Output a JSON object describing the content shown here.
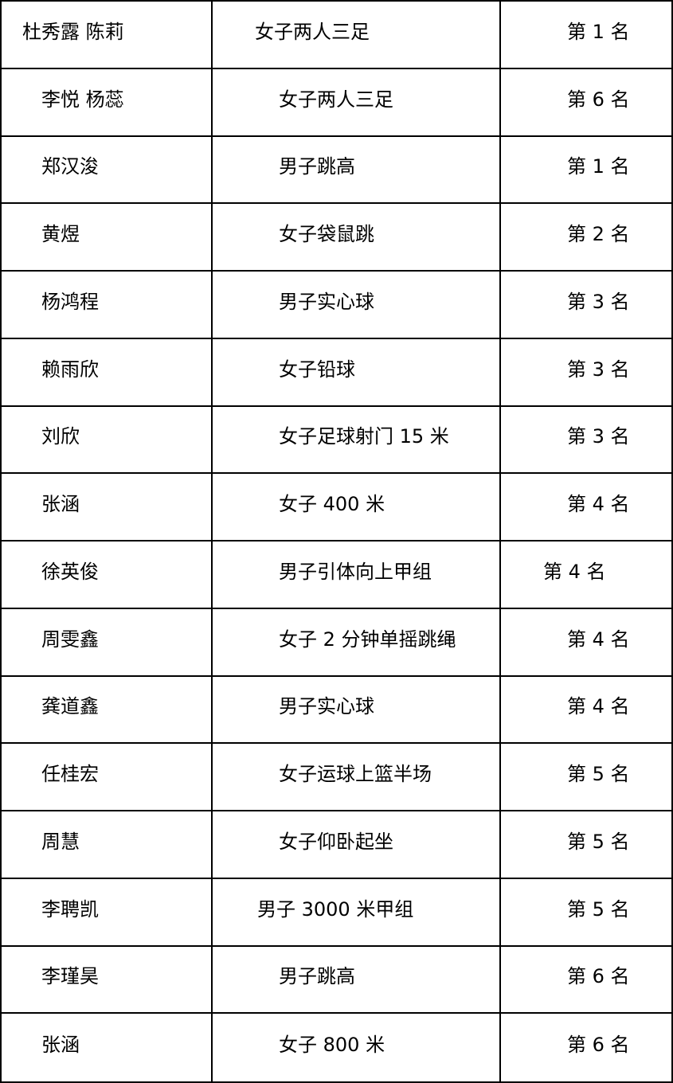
{
  "table": {
    "column_semantics": [
      "athlete-name",
      "event-name",
      "rank"
    ],
    "indent_defaults": {
      "name": 50,
      "event": 83,
      "rank": 83
    },
    "rows": [
      {
        "name": "杜秀露 陈莉",
        "event": "女子两人三足",
        "rank": "第 1 名",
        "name_indent": 26,
        "event_indent": 53
      },
      {
        "name": "李悦 杨蕊",
        "event": "女子两人三足",
        "rank": "第 6 名"
      },
      {
        "name": "郑汉浚",
        "event": "男子跳高",
        "rank": "第 1 名"
      },
      {
        "name": "黄煜",
        "event": "女子袋鼠跳",
        "rank": "第 2 名"
      },
      {
        "name": "杨鸿程",
        "event": "男子实心球",
        "rank": "第 3 名"
      },
      {
        "name": "赖雨欣",
        "event": "女子铅球",
        "rank": "第 3 名"
      },
      {
        "name": "刘欣",
        "event": "女子足球射门 15 米",
        "rank": "第 3 名"
      },
      {
        "name": "张涵",
        "event": "女子 400 米",
        "rank": "第 4 名"
      },
      {
        "name": "徐英俊",
        "event": "男子引体向上甲组",
        "rank": "第 4 名",
        "rank_indent": 53
      },
      {
        "name": "周雯鑫",
        "event": "女子 2 分钟单摇跳绳",
        "rank": "第 4 名"
      },
      {
        "name": "龚道鑫",
        "event": "男子实心球",
        "rank": "第 4 名"
      },
      {
        "name": "任桂宏",
        "event": "女子运球上篮半场",
        "rank": "第 5 名"
      },
      {
        "name": "周慧",
        "event": "女子仰卧起坐",
        "rank": "第 5 名"
      },
      {
        "name": "李聘凯",
        "event": "男子 3000 米甲组",
        "rank": "第 5 名",
        "event_indent": 56
      },
      {
        "name": "李瑾昊",
        "event": "男子跳高",
        "rank": "第 6 名"
      },
      {
        "name": "张涵",
        "event": "女子 800 米",
        "rank": "第 6 名"
      }
    ],
    "border_color": "#000000",
    "text_color": "#000000",
    "background_color": "#ffffff"
  }
}
